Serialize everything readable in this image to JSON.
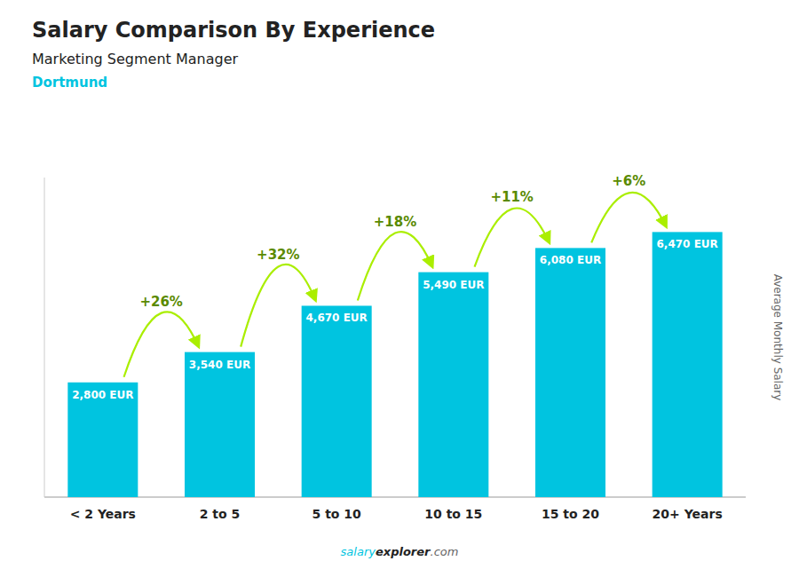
{
  "chart_data": {
    "type": "bar",
    "title": "Salary Comparison By Experience",
    "subtitle": "Marketing Segment Manager",
    "city": "Dortmund",
    "ylabel": "Average Monthly Salary",
    "categories": [
      "< 2 Years",
      "2 to 5",
      "5 to 10",
      "10 to 15",
      "15 to 20",
      "20+ Years"
    ],
    "values": [
      2800,
      3540,
      4670,
      5490,
      6080,
      6470
    ],
    "value_labels": [
      "2,800 EUR",
      "3,540 EUR",
      "4,670 EUR",
      "5,490 EUR",
      "6,080 EUR",
      "6,470 EUR"
    ],
    "data_labels": true,
    "color": "#00c4e0",
    "annotations": {
      "labels": [
        "+26%",
        "+32%",
        "+18%",
        "+11%",
        "+6%"
      ],
      "color": "#aaee00"
    },
    "footer": [
      "salary",
      "explorer",
      ".com"
    ],
    "ylim": [
      0,
      7800
    ],
    "grid": false,
    "tick_labels": "x"
  }
}
